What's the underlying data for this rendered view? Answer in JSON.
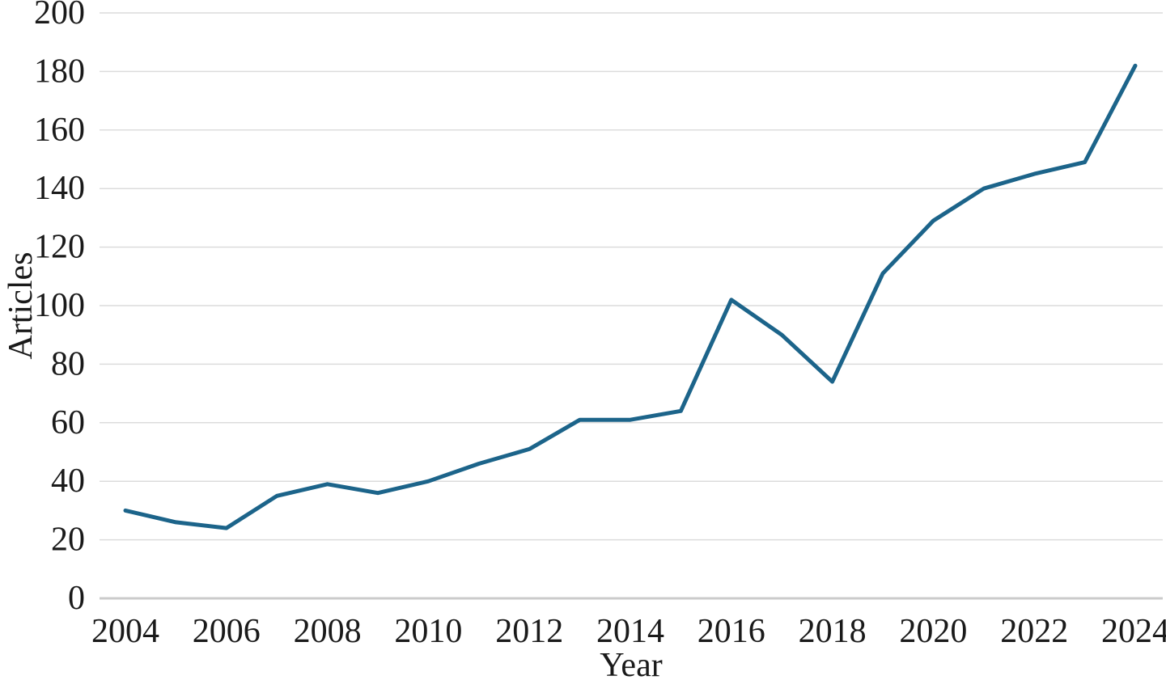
{
  "chart_data": {
    "type": "line",
    "title": "",
    "xlabel": "Year",
    "ylabel": "Articles",
    "x": [
      2004,
      2005,
      2006,
      2007,
      2008,
      2009,
      2010,
      2011,
      2012,
      2013,
      2014,
      2015,
      2016,
      2017,
      2018,
      2019,
      2020,
      2021,
      2022,
      2023,
      2024
    ],
    "series": [
      {
        "name": "Articles",
        "values": [
          30,
          26,
          24,
          35,
          39,
          36,
          40,
          46,
          51,
          61,
          61,
          64,
          102,
          90,
          74,
          111,
          129,
          140,
          145,
          149,
          182
        ]
      }
    ],
    "ylim": [
      0,
      200
    ],
    "ytick_step": 20,
    "xtick_step": 2,
    "grid": "horizontal-only",
    "legend_position": "none",
    "line_color": "#1c648a",
    "grid_color": "#dcdcdc",
    "axis_line_color": "#cbcbcb",
    "text_color": "#1a1a1a"
  }
}
